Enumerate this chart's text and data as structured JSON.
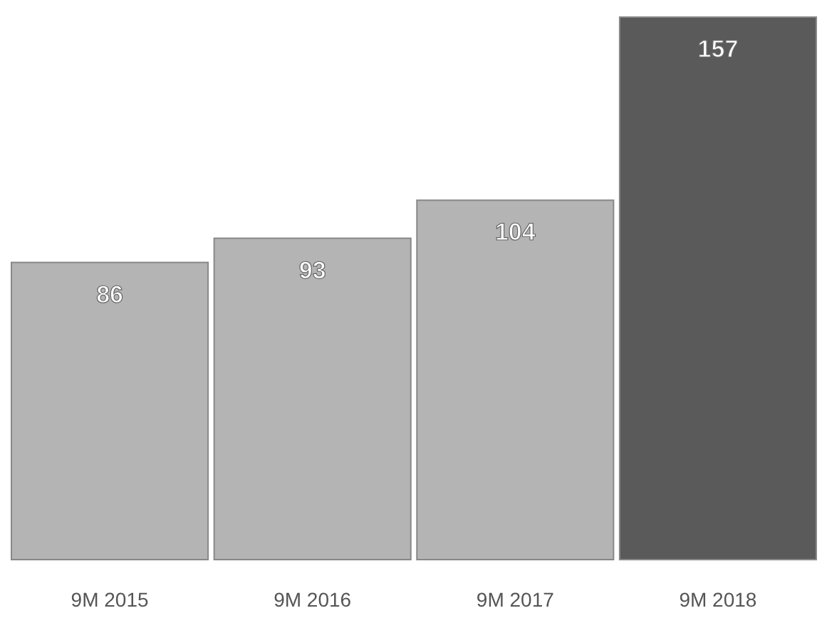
{
  "chart_data": {
    "type": "bar",
    "categories": [
      "9M 2015",
      "9M 2016",
      "9M 2017",
      "9M 2018"
    ],
    "values": [
      86,
      93,
      104,
      157
    ],
    "colors": [
      "#b4b4b4",
      "#b4b4b4",
      "#b4b4b4",
      "#5a5a5a"
    ],
    "data_labels": true
  }
}
